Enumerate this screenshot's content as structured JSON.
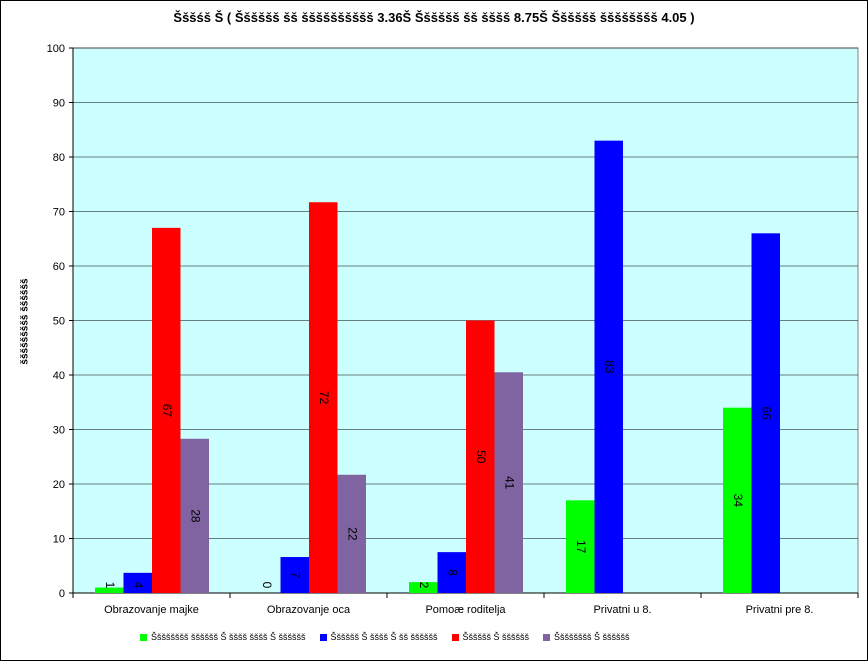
{
  "chart_data": {
    "type": "bar",
    "title": "Šššśš  Š ( Šššššš šš šššššššššš 3.36Š Šššššš šš šššš  8.75Š Šššššš šššššššš  4.05 )",
    "ylabel": "ššššššššš  šššššš",
    "xlabel": "",
    "ylim": [
      0,
      100
    ],
    "yticks": [
      0,
      10,
      20,
      30,
      40,
      50,
      60,
      70,
      80,
      90,
      100
    ],
    "grid": true,
    "legend_position": "bottom",
    "categories": [
      "Obrazovanje majke",
      "Obrazovanje oca",
      "Pomoæ roditelja",
      "Privatni u 8.",
      "Privatni pre 8."
    ],
    "series": [
      {
        "name": "Šššššššš šššššš Š šššš šššš Š šššššš",
        "color": "#00ff00",
        "values": [
          1,
          0,
          2,
          17,
          34
        ],
        "labels": [
          "1",
          "0",
          "2",
          "17",
          "34"
        ]
      },
      {
        "name": "Šššššš Š šššš Š šš šššššš",
        "color": "#0000ff",
        "values": [
          3.7,
          6.6,
          7.5,
          83,
          66
        ],
        "labels": [
          "4",
          "7",
          "8",
          "83",
          "66"
        ]
      },
      {
        "name": "Šššššš Š šššššš",
        "color": "#ff0000",
        "values": [
          67,
          71.7,
          50,
          null,
          null
        ],
        "labels": [
          "67",
          "72",
          "50",
          "",
          ""
        ]
      },
      {
        "name": "Šššššššš Š šššššš",
        "color": "#8064a2",
        "values": [
          28.3,
          21.7,
          40.5,
          null,
          null
        ],
        "labels": [
          "28",
          "22",
          "41",
          "",
          ""
        ]
      }
    ]
  }
}
